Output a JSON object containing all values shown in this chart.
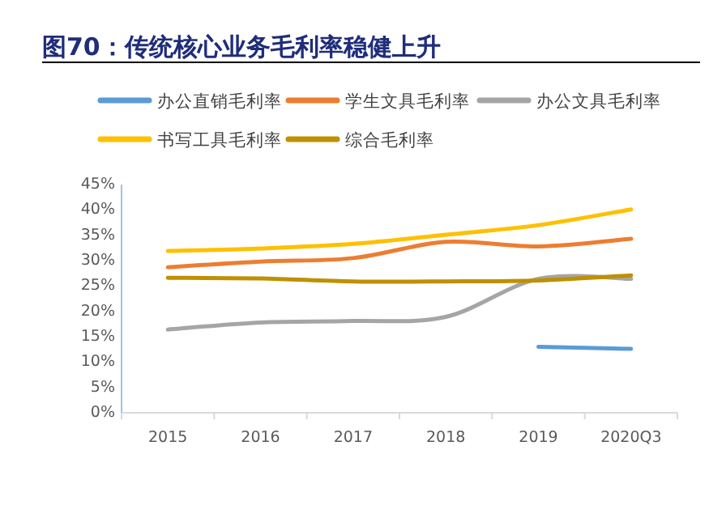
{
  "chart_data": {
    "type": "line",
    "title": "图70：传统核心业务毛利率稳健上升",
    "categories": [
      "2015",
      "2016",
      "2017",
      "2018",
      "2019",
      "2020Q3"
    ],
    "series": [
      {
        "name": "办公直销毛利率",
        "color": "#5b9bd5",
        "values": [
          null,
          null,
          null,
          null,
          13.0,
          12.6
        ]
      },
      {
        "name": "学生文具毛利率",
        "color": "#ed7d31",
        "values": [
          28.7,
          29.8,
          30.5,
          33.7,
          32.8,
          34.3
        ]
      },
      {
        "name": "办公文具毛利率",
        "color": "#a5a5a5",
        "values": [
          16.4,
          17.8,
          18.1,
          18.9,
          26.4,
          26.4
        ]
      },
      {
        "name": "书写工具毛利率",
        "color": "#ffc000",
        "values": [
          31.9,
          32.4,
          33.3,
          35.1,
          37.0,
          40.1
        ]
      },
      {
        "name": "综合毛利率",
        "color": "#bf9000",
        "values": [
          26.6,
          26.5,
          25.9,
          25.9,
          26.1,
          27.1
        ]
      }
    ],
    "ylim": [
      0,
      45
    ],
    "yticks": [
      {
        "value": 0,
        "label": "0%"
      },
      {
        "value": 5,
        "label": "5%"
      },
      {
        "value": 10,
        "label": "10%"
      },
      {
        "value": 15,
        "label": "15%"
      },
      {
        "value": 20,
        "label": "20%"
      },
      {
        "value": 25,
        "label": "25%"
      },
      {
        "value": 30,
        "label": "30%"
      },
      {
        "value": 35,
        "label": "35%"
      },
      {
        "value": 40,
        "label": "40%"
      },
      {
        "value": 45,
        "label": "45%"
      }
    ],
    "grid": false,
    "legend": "top",
    "marker": "none",
    "line_style": "solid"
  }
}
